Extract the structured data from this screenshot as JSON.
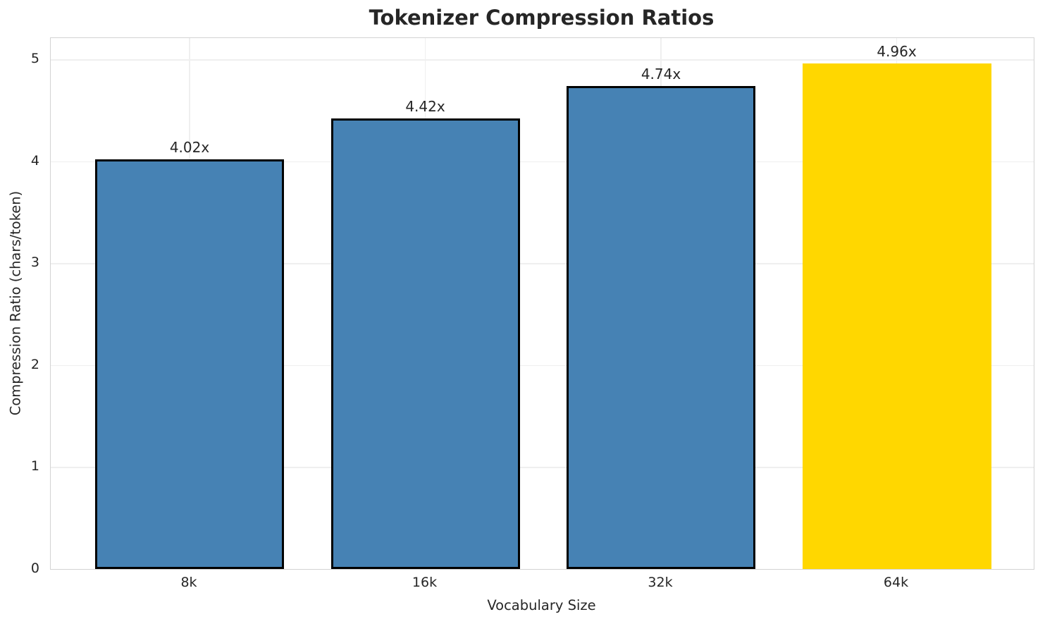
{
  "chart_data": {
    "type": "bar",
    "title": "Tokenizer Compression Ratios",
    "xlabel": "Vocabulary Size",
    "ylabel": "Compression Ratio (chars/token)",
    "categories": [
      "8k",
      "16k",
      "32k",
      "64k"
    ],
    "values": [
      4.02,
      4.42,
      4.74,
      4.96
    ],
    "bar_labels": [
      "4.02x",
      "4.42x",
      "4.74x",
      "4.96x"
    ],
    "bar_colors": [
      "#4682B4",
      "#4682B4",
      "#4682B4",
      "#FFD700"
    ],
    "bar_edge_colors": [
      "#000000",
      "#000000",
      "#000000",
      "none"
    ],
    "highlighted_category": "64k",
    "yticks": [
      0,
      1,
      2,
      3,
      4,
      5
    ],
    "ylim": [
      0,
      5.21
    ],
    "grid": true,
    "legend_position": "none"
  }
}
